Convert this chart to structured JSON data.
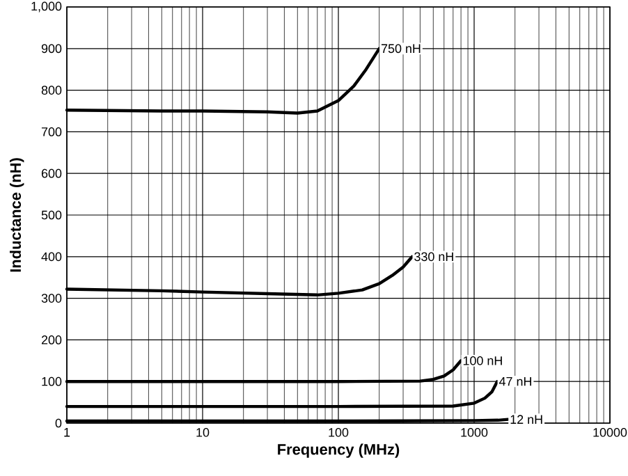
{
  "chart_data": {
    "type": "line",
    "xlabel": "Frequency (MHz)",
    "ylabel": "Inductance (nH)",
    "log": "x",
    "grid": true,
    "marker": "none",
    "line_style": "solid",
    "xlim": [
      1,
      10000
    ],
    "ylim": [
      0,
      1000
    ],
    "xticks": [
      1,
      10,
      100,
      1000,
      10000
    ],
    "yticks": [
      0,
      100,
      200,
      300,
      400,
      500,
      600,
      700,
      800,
      900,
      {
        "value": 1000,
        "label": "1,000"
      }
    ],
    "series": [
      {
        "color": "#000000",
        "x": [
          1,
          5,
          10,
          30,
          50,
          70,
          100,
          130,
          160,
          200
        ],
        "values": [
          752,
          750,
          750,
          748,
          745,
          750,
          775,
          810,
          850,
          900
        ]
      },
      {
        "color": "#000000",
        "x": [
          1,
          5,
          10,
          30,
          70,
          100,
          150,
          200,
          250,
          300,
          350
        ],
        "values": [
          322,
          318,
          315,
          311,
          308,
          312,
          320,
          335,
          355,
          375,
          400
        ]
      },
      {
        "color": "#000000",
        "x": [
          1,
          10,
          100,
          400,
          500,
          600,
          700,
          800
        ],
        "values": [
          100,
          100,
          100,
          101,
          105,
          113,
          128,
          150
        ]
      },
      {
        "color": "#000000",
        "x": [
          1,
          10,
          100,
          700,
          1000,
          1200,
          1350,
          1480
        ],
        "values": [
          40,
          40,
          40,
          41,
          48,
          60,
          75,
          100
        ]
      },
      {
        "color": "#000000",
        "x": [
          1,
          10,
          100,
          1000,
          1500,
          1780
        ],
        "values": [
          5,
          5,
          5,
          6,
          7,
          9
        ]
      }
    ],
    "annotations": [
      {
        "text": "750 nH",
        "x": 200,
        "y": 900
      },
      {
        "text": "330 nH",
        "x": 350,
        "y": 400
      },
      {
        "text": "100 nH",
        "x": 800,
        "y": 150
      },
      {
        "text": "47 nH",
        "x": 1480,
        "y": 100
      },
      {
        "text": "12 nH",
        "x": 1780,
        "y": 9
      }
    ]
  }
}
